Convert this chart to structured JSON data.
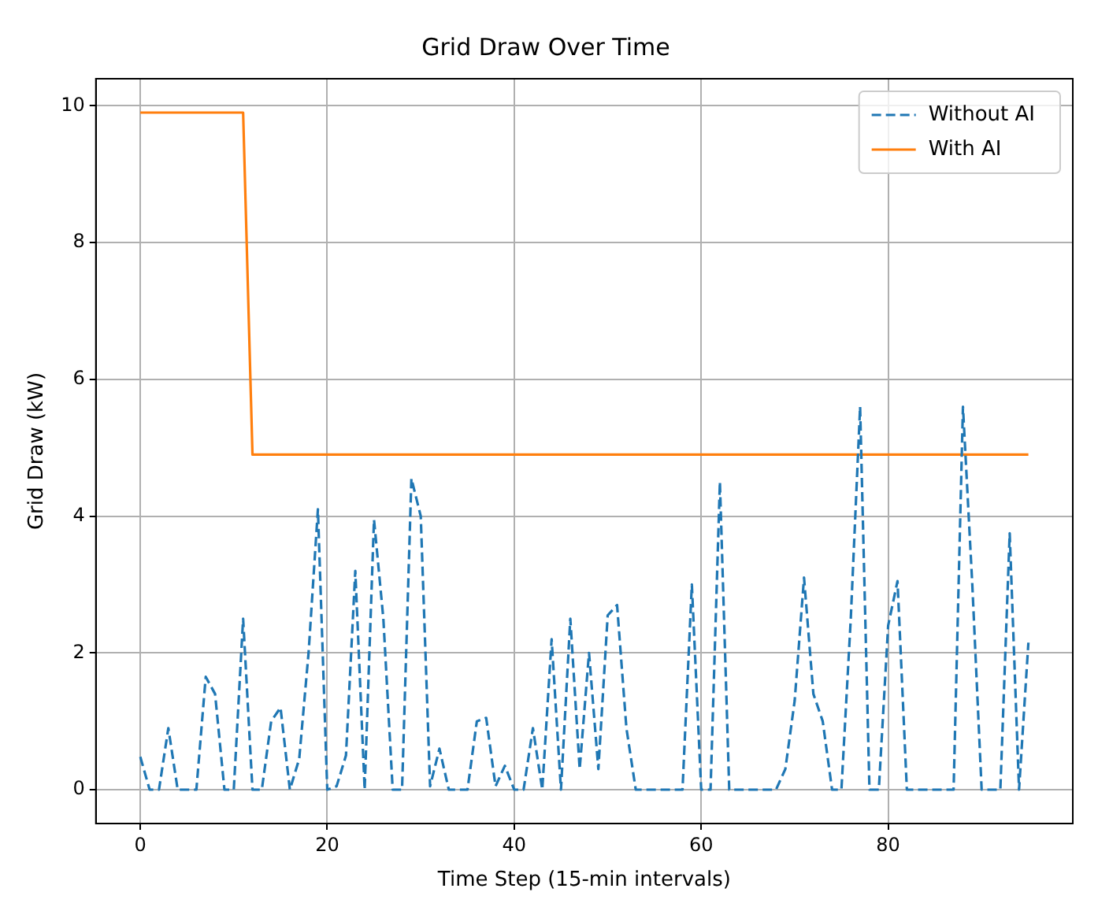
{
  "chart_data": {
    "type": "line",
    "title": "Grid Draw Over Time",
    "xlabel": "Time Step (15-min intervals)",
    "ylabel": "Grid Draw (kW)",
    "x": [
      0,
      1,
      2,
      3,
      4,
      5,
      6,
      7,
      8,
      9,
      10,
      11,
      12,
      13,
      14,
      15,
      16,
      17,
      18,
      19,
      20,
      21,
      22,
      23,
      24,
      25,
      26,
      27,
      28,
      29,
      30,
      31,
      32,
      33,
      34,
      35,
      36,
      37,
      38,
      39,
      40,
      41,
      42,
      43,
      44,
      45,
      46,
      47,
      48,
      49,
      50,
      51,
      52,
      53,
      54,
      55,
      56,
      57,
      58,
      59,
      60,
      61,
      62,
      63,
      64,
      65,
      66,
      67,
      68,
      69,
      70,
      71,
      72,
      73,
      74,
      75,
      76,
      77,
      78,
      79,
      80,
      81,
      82,
      83,
      84,
      85,
      86,
      87,
      88,
      89,
      90,
      91,
      92,
      93,
      94,
      95
    ],
    "series": [
      {
        "name": "Without AI",
        "color": "#1f77b4",
        "line_style": "dashed",
        "values": [
          0.48,
          0,
          0,
          0.9,
          0,
          0,
          0,
          1.65,
          1.4,
          0,
          0,
          2.5,
          0,
          0,
          1.0,
          1.2,
          0,
          0.45,
          2.0,
          4.1,
          0,
          0.05,
          0.5,
          3.2,
          0,
          3.95,
          2.5,
          0,
          0,
          4.55,
          4.0,
          0.05,
          0.6,
          0,
          0,
          0,
          1.0,
          1.05,
          0.05,
          0.35,
          0,
          0,
          0.9,
          0,
          2.2,
          0,
          2.5,
          0.3,
          2.0,
          0.3,
          2.55,
          2.7,
          0.9,
          0,
          0,
          0,
          0,
          0,
          0,
          3.0,
          0,
          0,
          4.5,
          0,
          0,
          0,
          0,
          0,
          0,
          0.3,
          1.3,
          3.1,
          1.4,
          1.0,
          0,
          0,
          2.5,
          5.6,
          0,
          0,
          2.4,
          3.05,
          0,
          0,
          0,
          0,
          0,
          0,
          5.6,
          3.0,
          0,
          0,
          0,
          3.75,
          0,
          2.15
        ]
      },
      {
        "name": "With AI",
        "color": "#ff7f0e",
        "line_style": "solid",
        "values": [
          9.9,
          9.9,
          9.9,
          9.9,
          9.9,
          9.9,
          9.9,
          9.9,
          9.9,
          9.9,
          9.9,
          9.9,
          4.9,
          4.9,
          4.9,
          4.9,
          4.9,
          4.9,
          4.9,
          4.9,
          4.9,
          4.9,
          4.9,
          4.9,
          4.9,
          4.9,
          4.9,
          4.9,
          4.9,
          4.9,
          4.9,
          4.9,
          4.9,
          4.9,
          4.9,
          4.9,
          4.9,
          4.9,
          4.9,
          4.9,
          4.9,
          4.9,
          4.9,
          4.9,
          4.9,
          4.9,
          4.9,
          4.9,
          4.9,
          4.9,
          4.9,
          4.9,
          4.9,
          4.9,
          4.9,
          4.9,
          4.9,
          4.9,
          4.9,
          4.9,
          4.9,
          4.9,
          4.9,
          4.9,
          4.9,
          4.9,
          4.9,
          4.9,
          4.9,
          4.9,
          4.9,
          4.9,
          4.9,
          4.9,
          4.9,
          4.9,
          4.9,
          4.9,
          4.9,
          4.9,
          4.9,
          4.9,
          4.9,
          4.9,
          4.9,
          4.9,
          4.9,
          4.9,
          4.9,
          4.9,
          4.9,
          4.9,
          4.9,
          4.9,
          4.9,
          4.9
        ]
      }
    ],
    "xlim": [
      -4.75,
      99.75
    ],
    "xticks": [
      0,
      20,
      40,
      60,
      80
    ],
    "ylim": [
      -0.495,
      10.395
    ],
    "yticks": [
      0,
      2,
      4,
      6,
      8,
      10
    ],
    "grid": true,
    "legend": "top right",
    "marker": "none"
  }
}
